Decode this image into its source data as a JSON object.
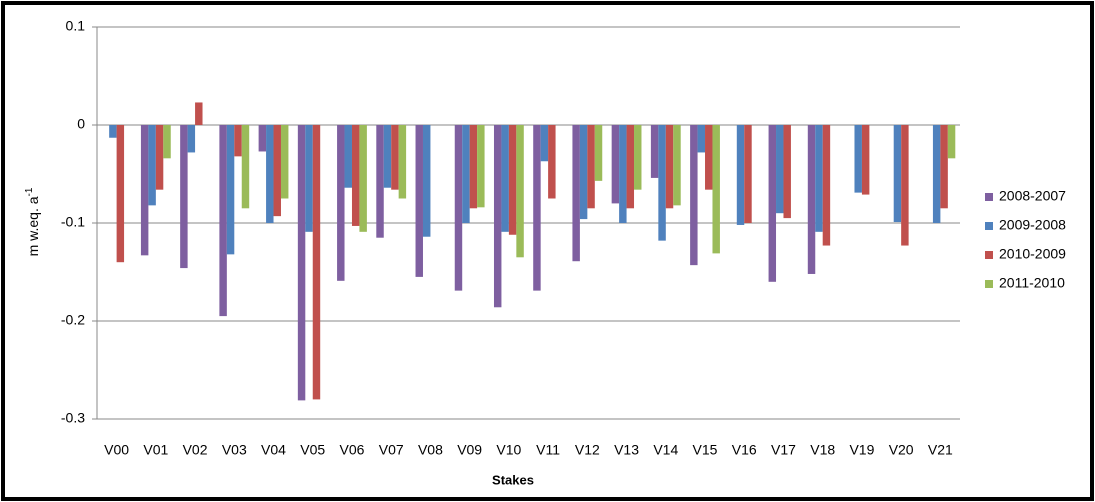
{
  "chart_data": {
    "type": "bar",
    "x_label": "Stakes",
    "y_label": "m w.eq. a",
    "y_label_superscript": "-1",
    "categories": [
      "V00",
      "V01",
      "V02",
      "V03",
      "V04",
      "V05",
      "V06",
      "V07",
      "V08",
      "V09",
      "V10",
      "V11",
      "V12",
      "V13",
      "V14",
      "V15",
      "V16",
      "V17",
      "V18",
      "V19",
      "V20",
      "V21"
    ],
    "series": [
      {
        "name": "2008-2007",
        "color": "#7e5fa0",
        "values": [
          null,
          -0.133,
          -0.146,
          -0.195,
          -0.027,
          -0.281,
          -0.159,
          -0.115,
          -0.155,
          -0.169,
          -0.186,
          -0.169,
          -0.139,
          -0.08,
          -0.054,
          -0.143,
          null,
          -0.16,
          -0.152,
          null,
          null,
          null
        ]
      },
      {
        "name": "2009-2008",
        "color": "#4f81bd",
        "values": [
          -0.013,
          -0.082,
          -0.028,
          -0.132,
          -0.1,
          -0.109,
          -0.064,
          -0.064,
          -0.114,
          -0.1,
          -0.109,
          -0.037,
          -0.096,
          -0.1,
          -0.118,
          -0.028,
          -0.102,
          -0.09,
          -0.109,
          -0.069,
          -0.099,
          -0.1
        ]
      },
      {
        "name": "2010-2009",
        "color": "#c0504d",
        "values": [
          -0.14,
          -0.066,
          0.023,
          -0.032,
          -0.093,
          -0.28,
          -0.103,
          -0.066,
          null,
          -0.085,
          -0.112,
          -0.075,
          -0.085,
          -0.085,
          -0.085,
          -0.066,
          -0.1,
          -0.095,
          -0.123,
          -0.071,
          -0.123,
          -0.085
        ]
      },
      {
        "name": "2011-2010",
        "color": "#9bbb59",
        "values": [
          null,
          -0.034,
          null,
          -0.085,
          -0.075,
          null,
          -0.109,
          -0.075,
          null,
          -0.084,
          -0.135,
          null,
          -0.057,
          -0.066,
          -0.082,
          -0.131,
          null,
          null,
          null,
          null,
          null,
          -0.034
        ]
      }
    ],
    "ylim": [
      -0.3,
      0.1
    ],
    "yticks": [
      -0.3,
      -0.2,
      -0.1,
      0,
      0.1
    ],
    "grid": true,
    "legend": "right"
  }
}
